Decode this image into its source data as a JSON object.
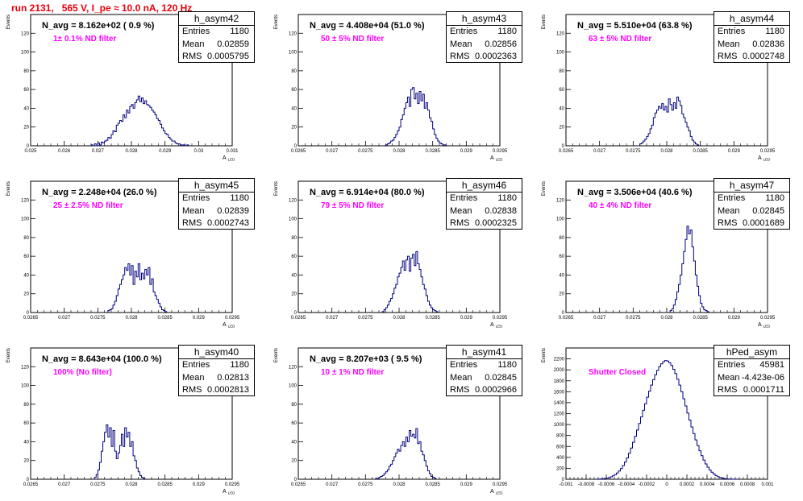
{
  "page_title": "run 2131,   565 V, I_pe ≈ 10.0 nA, 120 Hz",
  "stats_labels": {
    "entries": "Entries",
    "mean": "Mean",
    "rms": "RMS"
  },
  "colors": {
    "histogram": "#00007f",
    "title": "#e8000b",
    "filter_text": "#ff00ff"
  },
  "chart_data": [
    {
      "type": "bar",
      "name": "h_asym42",
      "title": "N_avg = 8.162e+02 ( 0.9 %)",
      "annotation": "1± 0.1% ND filter",
      "stats": {
        "entries": "1180",
        "mean": "0.02859",
        "rms": "0.0005795"
      },
      "xlabel": "A",
      "xlabel_sub": "LED",
      "ylabel": "Events",
      "xlim": [
        0.025,
        0.031
      ],
      "ylim": [
        0,
        140
      ],
      "xticks": [
        0.025,
        0.026,
        0.027,
        0.028,
        0.029,
        0.03,
        0.031
      ],
      "xtick_labels": [
        "0.025",
        "0.026",
        "0.027",
        "0.028",
        "0.029",
        "0.03",
        "0.031"
      ],
      "yticks": [
        0,
        20,
        40,
        60,
        80,
        100,
        120
      ],
      "x_start": 0.0268,
      "bin_width": 5e-05,
      "values": [
        1,
        0,
        2,
        0,
        3,
        1,
        4,
        3,
        5,
        6,
        9,
        8,
        12,
        16,
        15,
        22,
        24,
        27,
        26,
        33,
        30,
        38,
        35,
        42,
        44,
        40,
        46,
        49,
        53,
        47,
        51,
        45,
        48,
        44,
        43,
        41,
        38,
        36,
        33,
        29,
        27,
        23,
        19,
        16,
        13,
        12,
        9,
        7,
        5,
        5,
        3,
        2,
        2,
        1,
        1,
        1,
        0,
        1
      ]
    },
    {
      "type": "bar",
      "name": "h_asym43",
      "title": "N_avg = 4.408e+04 (51.0 %)",
      "annotation": "50 ± 5% ND filter",
      "stats": {
        "entries": "1180",
        "mean": "0.02856",
        "rms": "0.0002363"
      },
      "xlabel": "A",
      "xlabel_sub": "LED",
      "ylabel": "Events",
      "xlim": [
        0.0265,
        0.0295
      ],
      "ylim": [
        0,
        140
      ],
      "xticks": [
        0.0265,
        0.027,
        0.0275,
        0.028,
        0.0285,
        0.029,
        0.0295
      ],
      "xtick_labels": [
        "0.0265",
        "0.027",
        "0.0275",
        "0.028",
        "0.0285",
        "0.029",
        "0.0295"
      ],
      "yticks": [
        0,
        20,
        40,
        60,
        80,
        100,
        120
      ],
      "x_start": 0.0278,
      "bin_width": 2.5e-05,
      "values": [
        1,
        2,
        3,
        5,
        6,
        9,
        12,
        16,
        20,
        28,
        33,
        40,
        46,
        52,
        42,
        60,
        62,
        50,
        56,
        45,
        58,
        48,
        55,
        40,
        46,
        38,
        30,
        26,
        18,
        12,
        8,
        5,
        3,
        2,
        1,
        1
      ]
    },
    {
      "type": "bar",
      "name": "h_asym44",
      "title": "N_avg = 5.510e+04 (63.8 %)",
      "annotation": "63 ± 5% ND filter",
      "stats": {
        "entries": "1180",
        "mean": "0.02836",
        "rms": "0.0002748"
      },
      "xlabel": "A",
      "xlabel_sub": "LED",
      "ylabel": "Events",
      "xlim": [
        0.0265,
        0.0295
      ],
      "ylim": [
        0,
        140
      ],
      "xticks": [
        0.0265,
        0.027,
        0.0275,
        0.028,
        0.0285,
        0.029,
        0.0295
      ],
      "xtick_labels": [
        "0.0265",
        "0.027",
        "0.0275",
        "0.028",
        "0.0285",
        "0.029",
        "0.0295"
      ],
      "yticks": [
        0,
        20,
        40,
        60,
        80,
        100,
        120
      ],
      "x_start": 0.0276,
      "bin_width": 2.5e-05,
      "values": [
        2,
        3,
        5,
        7,
        10,
        13,
        18,
        22,
        30,
        35,
        38,
        42,
        40,
        45,
        38,
        42,
        36,
        50,
        44,
        38,
        46,
        40,
        52,
        48,
        43,
        34,
        30,
        25,
        20,
        16,
        10,
        6,
        4,
        2,
        1
      ]
    },
    {
      "type": "bar",
      "name": "h_asym45",
      "title": "N_avg = 2.248e+04 (26.0 %)",
      "annotation": "25 ± 2.5% ND filter",
      "stats": {
        "entries": "1180",
        "mean": "0.02839",
        "rms": "0.0002743"
      },
      "xlabel": "A",
      "xlabel_sub": "LED",
      "ylabel": "Events",
      "xlim": [
        0.0265,
        0.0295
      ],
      "ylim": [
        0,
        140
      ],
      "xticks": [
        0.0265,
        0.027,
        0.0275,
        0.028,
        0.0285,
        0.029,
        0.0295
      ],
      "xtick_labels": [
        "0.0265",
        "0.027",
        "0.0275",
        "0.028",
        "0.0285",
        "0.029",
        "0.0295"
      ],
      "yticks": [
        0,
        20,
        40,
        60,
        80,
        100,
        120
      ],
      "x_start": 0.02765,
      "bin_width": 2.5e-05,
      "values": [
        2,
        3,
        4,
        8,
        12,
        18,
        25,
        30,
        35,
        40,
        48,
        45,
        52,
        40,
        50,
        30,
        44,
        38,
        52,
        35,
        42,
        36,
        46,
        40,
        48,
        30,
        36,
        22,
        18,
        14,
        10,
        6,
        3,
        2,
        1
      ]
    },
    {
      "type": "bar",
      "name": "h_asym46",
      "title": "N_avg = 6.914e+04 (80.0 %)",
      "annotation": "79 ± 5% ND filter",
      "stats": {
        "entries": "1180",
        "mean": "0.02838",
        "rms": "0.0002325"
      },
      "xlabel": "A",
      "xlabel_sub": "LED",
      "ylabel": "Events",
      "xlim": [
        0.0265,
        0.0295
      ],
      "ylim": [
        0,
        140
      ],
      "xticks": [
        0.0265,
        0.027,
        0.0275,
        0.028,
        0.0285,
        0.029,
        0.0295
      ],
      "xtick_labels": [
        "0.0265",
        "0.027",
        "0.0275",
        "0.028",
        "0.0285",
        "0.029",
        "0.0295"
      ],
      "yticks": [
        0,
        20,
        40,
        60,
        80,
        100,
        120
      ],
      "x_start": 0.02775,
      "bin_width": 2.5e-05,
      "values": [
        1,
        3,
        5,
        8,
        12,
        15,
        20,
        26,
        30,
        38,
        42,
        48,
        55,
        45,
        56,
        60,
        44,
        58,
        62,
        50,
        65,
        52,
        46,
        38,
        30,
        25,
        18,
        12,
        8,
        5,
        3,
        2,
        1
      ]
    },
    {
      "type": "bar",
      "name": "h_asym47",
      "title": "N_avg = 3.506e+04 (40.6 %)",
      "annotation": "40 ± 4% ND filter",
      "stats": {
        "entries": "1180",
        "mean": "0.02845",
        "rms": "0.0001689"
      },
      "xlabel": "A",
      "xlabel_sub": "LED",
      "ylabel": "Events",
      "xlim": [
        0.0265,
        0.0295
      ],
      "ylim": [
        0,
        140
      ],
      "xticks": [
        0.0265,
        0.027,
        0.0275,
        0.028,
        0.0285,
        0.029,
        0.0295
      ],
      "xtick_labels": [
        "0.0265",
        "0.027",
        "0.0275",
        "0.028",
        "0.0285",
        "0.029",
        "0.0295"
      ],
      "yticks": [
        0,
        20,
        40,
        60,
        80,
        100,
        120
      ],
      "x_start": 0.02805,
      "bin_width": 2.5e-05,
      "values": [
        2,
        4,
        8,
        14,
        22,
        30,
        40,
        52,
        65,
        78,
        92,
        84,
        88,
        70,
        55,
        40,
        28,
        18,
        10,
        6,
        3,
        2,
        1
      ]
    },
    {
      "type": "bar",
      "name": "h_asym40",
      "title": "N_avg = 8.643e+04 (100.0 %)",
      "annotation": "100% (No filter)",
      "stats": {
        "entries": "1180",
        "mean": "0.02813",
        "rms": "0.0002813"
      },
      "xlabel": "A",
      "xlabel_sub": "LED",
      "ylabel": "Events",
      "xlim": [
        0.0265,
        0.0295
      ],
      "ylim": [
        0,
        140
      ],
      "xticks": [
        0.0265,
        0.027,
        0.0275,
        0.028,
        0.0285,
        0.029,
        0.0295
      ],
      "xtick_labels": [
        "0.0265",
        "0.027",
        "0.0275",
        "0.028",
        "0.0285",
        "0.029",
        "0.0295"
      ],
      "yticks": [
        0,
        20,
        40,
        60,
        80,
        100,
        120
      ],
      "x_start": 0.02745,
      "bin_width": 2.5e-05,
      "values": [
        2,
        5,
        10,
        18,
        30,
        40,
        50,
        58,
        45,
        55,
        35,
        52,
        30,
        22,
        28,
        36,
        48,
        35,
        55,
        45,
        50,
        35,
        40,
        25,
        20,
        12,
        8,
        4,
        2,
        1
      ]
    },
    {
      "type": "bar",
      "name": "h_asym41",
      "title": "N_avg = 8.207e+03 ( 9.5 %)",
      "annotation": "10 ± 1% ND filter",
      "stats": {
        "entries": "1180",
        "mean": "0.02845",
        "rms": "0.0002966"
      },
      "xlabel": "A",
      "xlabel_sub": "LED",
      "ylabel": "Events",
      "xlim": [
        0.0265,
        0.0295
      ],
      "ylim": [
        0,
        140
      ],
      "xticks": [
        0.0265,
        0.027,
        0.0275,
        0.028,
        0.0285,
        0.029,
        0.0295
      ],
      "xtick_labels": [
        "0.0265",
        "0.027",
        "0.0275",
        "0.028",
        "0.0285",
        "0.029",
        "0.0295"
      ],
      "yticks": [
        0,
        20,
        40,
        60,
        80,
        100,
        120
      ],
      "x_start": 0.02765,
      "bin_width": 2.5e-05,
      "values": [
        1,
        1,
        2,
        3,
        4,
        6,
        8,
        10,
        14,
        16,
        20,
        24,
        28,
        32,
        30,
        36,
        40,
        35,
        45,
        40,
        52,
        46,
        48,
        44,
        54,
        38,
        40,
        30,
        26,
        20,
        14,
        9,
        6,
        3,
        2,
        1
      ]
    },
    {
      "type": "bar",
      "name": "hPed_asym",
      "title": "",
      "annotation": "Shutter Closed",
      "stats": {
        "entries": "45981",
        "mean": "-4.423e-06",
        "rms": "0.0001711"
      },
      "xlabel": "",
      "xlabel_sub": "",
      "ylabel": "Events",
      "xlim": [
        -0.001,
        0.001
      ],
      "ylim": [
        0,
        2400
      ],
      "xticks": [
        -0.001,
        -0.0008,
        -0.0006,
        -0.0004,
        -0.0002,
        0,
        0.0002,
        0.0004,
        0.0006,
        0.0008,
        0.001
      ],
      "xtick_labels": [
        "-0.001",
        "-0.0008",
        "-0.0006",
        "-0.0004",
        "-0.0002",
        "0",
        "0.0002",
        "0.0004",
        "0.0006",
        "0.0008",
        "0.001"
      ],
      "yticks": [
        0,
        200,
        400,
        600,
        800,
        1000,
        1200,
        1400,
        1600,
        1800,
        2000,
        2200
      ],
      "x_start": -0.0007,
      "bin_width": 2e-05,
      "values": [
        2,
        4,
        6,
        10,
        15,
        22,
        30,
        45,
        62,
        85,
        115,
        150,
        195,
        250,
        315,
        390,
        475,
        570,
        675,
        785,
        900,
        1020,
        1140,
        1260,
        1380,
        1500,
        1610,
        1720,
        1820,
        1910,
        1990,
        2060,
        2110,
        2150,
        2170,
        2160,
        2130,
        2080,
        2010,
        1930,
        1830,
        1720,
        1600,
        1470,
        1340,
        1210,
        1080,
        955,
        835,
        720,
        615,
        520,
        430,
        350,
        280,
        220,
        170,
        128,
        95,
        68,
        48,
        33,
        22,
        15,
        10,
        6,
        4,
        2,
        1,
        1
      ]
    }
  ]
}
